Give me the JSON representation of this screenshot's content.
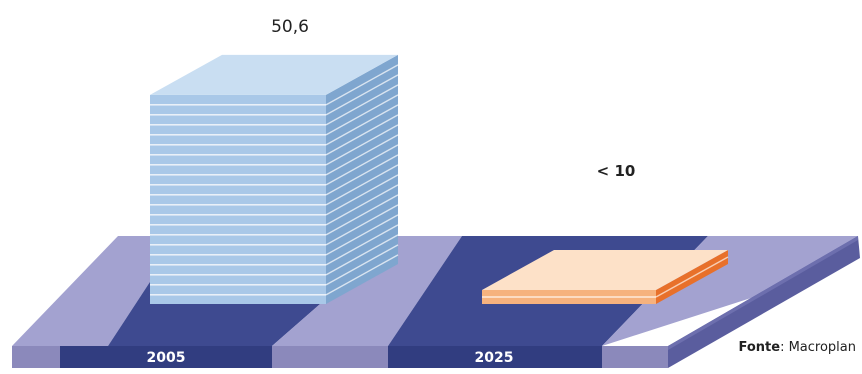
{
  "chart_data": {
    "type": "bar",
    "categories": [
      "2005",
      "2025"
    ],
    "values": [
      50.6,
      9.5
    ],
    "value_labels": [
      "50,6",
      "< 10"
    ],
    "title": "",
    "xlabel": "",
    "ylabel": "",
    "ylim": [
      0,
      60
    ],
    "style": "3d-stacked-slabs",
    "colors": {
      "bar_2005_front": "#a9c8e8",
      "bar_2005_side": "#7fa6cf",
      "bar_2005_top": "#c9def2",
      "bar_2025_front": "#f6b27e",
      "bar_2025_side": "#e8702a",
      "bar_2025_top": "#fde1c8",
      "platform_light": "#9d9dcc",
      "platform_dark": "#3f4a8f",
      "platform_edge": "#5c5fa3"
    }
  },
  "source": {
    "label": "Fonte",
    "value": ": Macroplan"
  }
}
